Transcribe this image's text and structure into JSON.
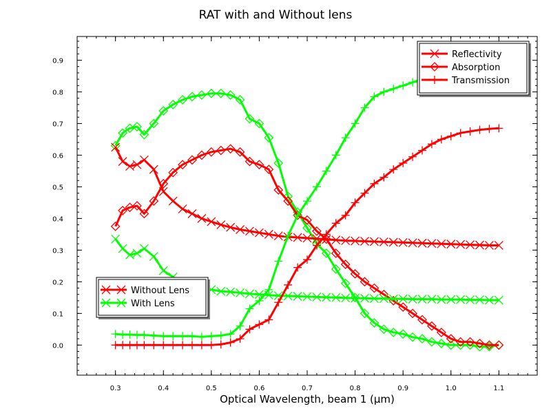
{
  "chart_data": {
    "type": "line",
    "title": "RAT with and Without lens",
    "xlabel": "Optical Wavelength, beam 1 (µm)",
    "ylabel": "",
    "xlim": [
      0.22,
      1.18
    ],
    "ylim": [
      -0.095,
      0.975
    ],
    "xticks": [
      "0.3",
      "0.4",
      "0.5",
      "0.6",
      "0.7",
      "0.8",
      "0.9",
      "1.0",
      "1.1"
    ],
    "yticks": [
      "0.0",
      "0.1",
      "0.2",
      "0.3",
      "0.4",
      "0.5",
      "0.6",
      "0.7",
      "0.8",
      "0.9"
    ],
    "grid": false,
    "legends": {
      "quantities": {
        "placement": "top-right",
        "entries": [
          {
            "label": "Reflectivity",
            "marker": "x"
          },
          {
            "label": "Absorption",
            "marker": "diamond"
          },
          {
            "label": "Transmission",
            "marker": "plus"
          }
        ]
      },
      "cases": {
        "placement": "lower-left",
        "entries": [
          {
            "label": "Without Lens",
            "color": "#ff0000"
          },
          {
            "label": "With Lens",
            "color": "#00ff00"
          }
        ]
      }
    },
    "series": [
      {
        "case": "With Lens",
        "quantity": "Absorption",
        "color": "#00ff00",
        "marker": "diamond",
        "x": [
          0.3,
          0.315,
          0.33,
          0.345,
          0.36,
          0.38,
          0.4,
          0.42,
          0.44,
          0.46,
          0.48,
          0.5,
          0.52,
          0.54,
          0.56,
          0.58,
          0.6,
          0.62,
          0.64,
          0.66,
          0.68,
          0.7,
          0.72,
          0.74,
          0.76,
          0.78,
          0.8,
          0.82,
          0.84,
          0.86,
          0.88,
          0.9,
          0.92,
          0.94,
          0.96,
          0.98,
          1.0,
          1.02,
          1.04,
          1.06,
          1.08,
          1.1
        ],
        "y": [
          0.63,
          0.67,
          0.685,
          0.69,
          0.665,
          0.7,
          0.74,
          0.76,
          0.775,
          0.785,
          0.79,
          0.795,
          0.795,
          0.79,
          0.775,
          0.715,
          0.7,
          0.655,
          0.575,
          0.47,
          0.42,
          0.37,
          0.32,
          0.29,
          0.24,
          0.195,
          0.15,
          0.1,
          0.07,
          0.05,
          0.04,
          0.035,
          0.025,
          0.02,
          0.01,
          0.005,
          0.0,
          0.0,
          0.0,
          -0.005,
          -0.005,
          0.0
        ]
      },
      {
        "case": "Without Lens",
        "quantity": "Absorption",
        "color": "#ff0000",
        "marker": "diamond",
        "x": [
          0.3,
          0.315,
          0.33,
          0.345,
          0.36,
          0.38,
          0.4,
          0.42,
          0.44,
          0.46,
          0.48,
          0.5,
          0.52,
          0.54,
          0.56,
          0.58,
          0.6,
          0.62,
          0.64,
          0.66,
          0.68,
          0.7,
          0.72,
          0.74,
          0.76,
          0.78,
          0.8,
          0.82,
          0.84,
          0.86,
          0.88,
          0.9,
          0.92,
          0.94,
          0.96,
          0.98,
          1.0,
          1.02,
          1.04,
          1.06,
          1.08,
          1.1
        ],
        "y": [
          0.375,
          0.425,
          0.435,
          0.44,
          0.415,
          0.455,
          0.51,
          0.545,
          0.57,
          0.585,
          0.6,
          0.61,
          0.615,
          0.62,
          0.61,
          0.58,
          0.57,
          0.555,
          0.49,
          0.455,
          0.41,
          0.395,
          0.36,
          0.335,
          0.29,
          0.255,
          0.225,
          0.2,
          0.18,
          0.16,
          0.14,
          0.12,
          0.1,
          0.08,
          0.06,
          0.04,
          0.02,
          0.01,
          0.01,
          0.005,
          0.0,
          0.0
        ]
      },
      {
        "case": "Without Lens",
        "quantity": "Reflectivity",
        "color": "#ff0000",
        "marker": "x",
        "x": [
          0.3,
          0.315,
          0.33,
          0.345,
          0.36,
          0.38,
          0.4,
          0.42,
          0.44,
          0.46,
          0.48,
          0.5,
          0.52,
          0.54,
          0.56,
          0.58,
          0.6,
          0.62,
          0.64,
          0.66,
          0.68,
          0.7,
          0.72,
          0.74,
          0.76,
          0.78,
          0.8,
          0.82,
          0.84,
          0.86,
          0.88,
          0.9,
          0.92,
          0.94,
          0.96,
          0.98,
          1.0,
          1.02,
          1.04,
          1.06,
          1.08,
          1.1
        ],
        "y": [
          0.625,
          0.58,
          0.565,
          0.57,
          0.585,
          0.555,
          0.485,
          0.455,
          0.43,
          0.415,
          0.4,
          0.39,
          0.38,
          0.372,
          0.365,
          0.36,
          0.355,
          0.35,
          0.345,
          0.342,
          0.34,
          0.338,
          0.336,
          0.334,
          0.332,
          0.33,
          0.329,
          0.328,
          0.327,
          0.326,
          0.325,
          0.324,
          0.323,
          0.322,
          0.321,
          0.32,
          0.319,
          0.318,
          0.317,
          0.316,
          0.315,
          0.315
        ]
      },
      {
        "case": "With Lens",
        "quantity": "Reflectivity",
        "color": "#00ff00",
        "marker": "x",
        "x": [
          0.3,
          0.315,
          0.33,
          0.345,
          0.36,
          0.38,
          0.4,
          0.42,
          0.44,
          0.46,
          0.48,
          0.5,
          0.52,
          0.54,
          0.56,
          0.58,
          0.6,
          0.62,
          0.64,
          0.66,
          0.68,
          0.7,
          0.72,
          0.74,
          0.76,
          0.78,
          0.8,
          0.82,
          0.84,
          0.86,
          0.88,
          0.9,
          0.92,
          0.94,
          0.96,
          0.98,
          1.0,
          1.02,
          1.04,
          1.06,
          1.08,
          1.1
        ],
        "y": [
          0.335,
          0.305,
          0.285,
          0.29,
          0.305,
          0.28,
          0.235,
          0.215,
          0.2,
          0.19,
          0.18,
          0.175,
          0.17,
          0.168,
          0.165,
          0.162,
          0.16,
          0.158,
          0.156,
          0.155,
          0.154,
          0.153,
          0.152,
          0.151,
          0.15,
          0.149,
          0.148,
          0.148,
          0.147,
          0.147,
          0.146,
          0.146,
          0.145,
          0.145,
          0.145,
          0.144,
          0.144,
          0.144,
          0.143,
          0.143,
          0.142,
          0.142
        ]
      },
      {
        "case": "With Lens",
        "quantity": "Transmission",
        "color": "#00ff00",
        "marker": "plus",
        "x": [
          0.3,
          0.315,
          0.33,
          0.345,
          0.36,
          0.38,
          0.4,
          0.42,
          0.44,
          0.46,
          0.48,
          0.5,
          0.52,
          0.54,
          0.56,
          0.58,
          0.6,
          0.62,
          0.64,
          0.66,
          0.68,
          0.7,
          0.72,
          0.74,
          0.76,
          0.78,
          0.8,
          0.82,
          0.84,
          0.86,
          0.88,
          0.9,
          0.92,
          0.94,
          0.96,
          0.98,
          1.0,
          1.02,
          1.04,
          1.06,
          1.08,
          1.1
        ],
        "y": [
          0.035,
          0.033,
          0.033,
          0.032,
          0.032,
          0.03,
          0.028,
          0.028,
          0.028,
          0.028,
          0.026,
          0.028,
          0.03,
          0.035,
          0.06,
          0.115,
          0.14,
          0.175,
          0.265,
          0.345,
          0.41,
          0.455,
          0.5,
          0.55,
          0.6,
          0.655,
          0.7,
          0.75,
          0.785,
          0.8,
          0.81,
          0.82,
          0.83,
          0.84,
          0.845,
          0.85,
          0.855,
          0.858,
          0.86,
          0.862,
          0.864,
          0.865
        ]
      },
      {
        "case": "Without Lens",
        "quantity": "Transmission",
        "color": "#ff0000",
        "marker": "plus",
        "x": [
          0.3,
          0.315,
          0.33,
          0.345,
          0.36,
          0.38,
          0.4,
          0.42,
          0.44,
          0.46,
          0.48,
          0.5,
          0.52,
          0.54,
          0.56,
          0.58,
          0.6,
          0.62,
          0.64,
          0.66,
          0.68,
          0.7,
          0.72,
          0.74,
          0.76,
          0.78,
          0.8,
          0.82,
          0.84,
          0.86,
          0.88,
          0.9,
          0.92,
          0.94,
          0.96,
          0.98,
          1.0,
          1.02,
          1.04,
          1.06,
          1.08,
          1.1
        ],
        "y": [
          0.0,
          0.0,
          0.0,
          0.0,
          0.0,
          0.0,
          0.0,
          0.0,
          0.0,
          0.0,
          0.0,
          0.0,
          0.002,
          0.008,
          0.02,
          0.05,
          0.065,
          0.08,
          0.135,
          0.19,
          0.245,
          0.27,
          0.315,
          0.35,
          0.385,
          0.41,
          0.45,
          0.48,
          0.51,
          0.53,
          0.555,
          0.575,
          0.595,
          0.615,
          0.635,
          0.65,
          0.66,
          0.67,
          0.675,
          0.68,
          0.683,
          0.685
        ]
      }
    ]
  }
}
